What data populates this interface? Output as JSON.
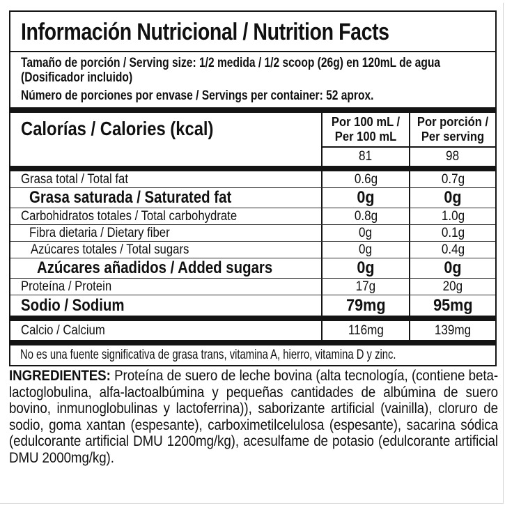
{
  "colors": {
    "ink": "#141414",
    "background": "#ffffff",
    "card_edge": "#cdcdcd"
  },
  "label": {
    "title": "Información Nutricional / Nutrition Facts",
    "serving_size": "Tamaño de porción / Serving size: 1/2 medida / 1/2 scoop (26g) en 120mL de agua",
    "serving_size_note": "(Dosificador incluido)",
    "servings_per_container": "Número de porciones por envase / Servings per container: 52 aprox.",
    "calories": {
      "label": "Calorías / Calories (kcal)",
      "per_100ml": "81",
      "per_serving": "98"
    },
    "columns": {
      "per_100ml_line1": "Por 100 mL /",
      "per_100ml_line2": "Per 100 mL",
      "per_serving_line1": "Por porción /",
      "per_serving_line2": "Per serving"
    },
    "rows": [
      {
        "name": "Grasa total / Total fat",
        "per_100ml": "0.6g",
        "per_serving": "0.7g"
      },
      {
        "name": "Grasa saturada / Saturated fat",
        "per_100ml": "0g",
        "per_serving": "0g"
      },
      {
        "name": "Carbohidratos totales / Total carbohydrate",
        "per_100ml": "0.8g",
        "per_serving": "1.0g"
      },
      {
        "name": "Fibra dietaria / Dietary fiber",
        "per_100ml": "0g",
        "per_serving": "0.1g"
      },
      {
        "name": "Azúcares totales / Total sugars",
        "per_100ml": "0g",
        "per_serving": "0.4g"
      },
      {
        "name": "Azúcares añadidos / Added sugars",
        "per_100ml": "0g",
        "per_serving": "0g"
      },
      {
        "name": "Proteína / Protein",
        "per_100ml": "17g",
        "per_serving": "20g"
      },
      {
        "name": "Sodio / Sodium",
        "per_100ml": "79mg",
        "per_serving": "95mg"
      },
      {
        "name": "Calcio / Calcium",
        "per_100ml": "116mg",
        "per_serving": "139mg"
      }
    ],
    "footnote": "No es una fuente significativa de grasa trans, vitamina A, hierro, vitamina D y zinc."
  },
  "ingredients": {
    "heading": "INGREDIENTES:",
    "text": " Proteína de suero de leche bovina (alta tecnología, (contiene beta-lactoglobulina, alfa-lactoalbúmina y pequeñas cantidades de albúmina de suero bovino, inmunoglobulinas y lactoferrina)), saborizante artificial (vainilla), cloruro de sodio, goma xantan (espesante), carboximetilcelulosa (espesante), sacarina sódica (edulcorante artificial DMU 1200mg/kg), acesulfame de potasio (edulcorante artificial DMU 2000mg/kg)."
  }
}
